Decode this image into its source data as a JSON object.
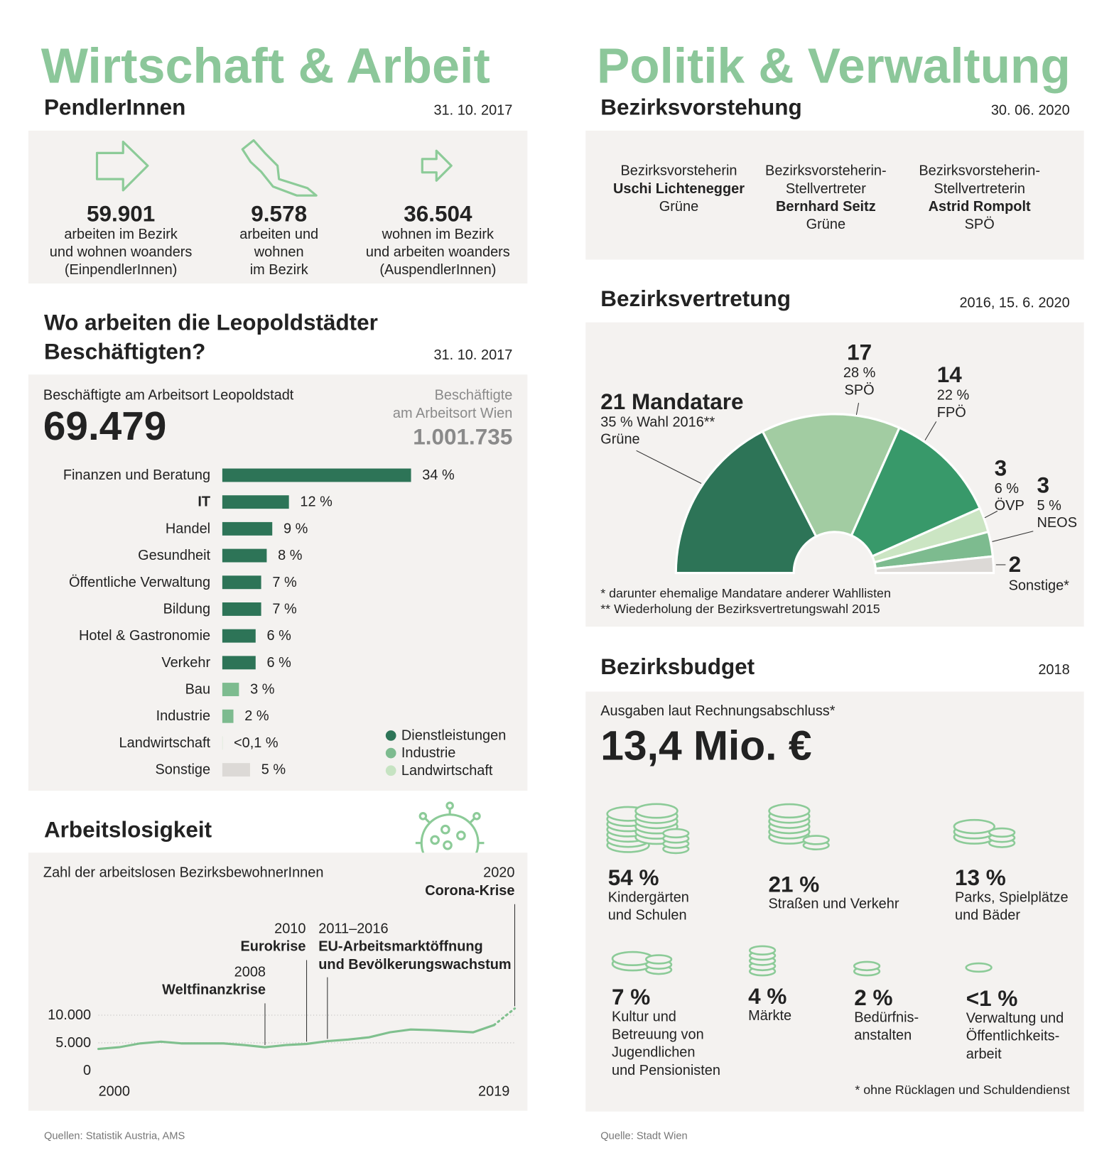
{
  "left_title": "Wirtschaft & Arbeit",
  "right_title": "Politik & Verwaltung",
  "pendler": {
    "heading": "PendlerInnen",
    "date": "31. 10. 2017",
    "items": [
      {
        "value": "59.901",
        "lines": [
          "arbeiten im Bezirk",
          "und wohnen woanders",
          "(EinpendlerInnen)"
        ]
      },
      {
        "value": "9.578",
        "lines": [
          "arbeiten und",
          "wohnen",
          "im Bezirk"
        ]
      },
      {
        "value": "36.504",
        "lines": [
          "wohnen im Bezirk",
          "und arbeiten woanders",
          "(AuspendlerInnen)"
        ]
      }
    ]
  },
  "sectors": {
    "heading": [
      "Wo arbeiten die Leopoldstädter",
      "Beschäftigten?"
    ],
    "date": "31. 10. 2017",
    "local_label": "Beschäftigte am Arbeitsort Leopoldstadt",
    "local_value": "69.479",
    "wien_label": [
      "Beschäftigte",
      "am Arbeitsort Wien"
    ],
    "wien_value": "1.001.735"
  },
  "vorstehung": {
    "heading": "Bezirksvorstehung",
    "date": "30. 06. 2020",
    "people": [
      {
        "role": [
          "Bezirksvorsteherin"
        ],
        "name": "Uschi Lichtenegger",
        "party": "Grüne"
      },
      {
        "role": [
          "Bezirksvorsteherin-",
          "Stellvertreter"
        ],
        "name": "Bernhard Seitz",
        "party": "Grüne"
      },
      {
        "role": [
          "Bezirksvorsteherin-",
          "Stellvertreterin"
        ],
        "name": "Astrid Rompolt",
        "party": "SPÖ"
      }
    ]
  },
  "budget": {
    "heading": "Bezirksbudget",
    "date": "2018",
    "label": "Ausgaben laut Rechnungsabschluss*",
    "total": "13,4 Mio. €",
    "items": [
      {
        "share": "54 %",
        "lines": [
          "Kindergärten",
          "und Schulen"
        ]
      },
      {
        "share": "21 %",
        "lines": [
          "Straßen und Verkehr"
        ]
      },
      {
        "share": "13 %",
        "lines": [
          "Parks, Spielplätze",
          "und Bäder"
        ]
      },
      {
        "share": "7 %",
        "lines": [
          "Kultur und",
          "Betreuung  von",
          "Jugendlichen",
          "und Pensionisten"
        ]
      },
      {
        "share": "4 %",
        "lines": [
          "Märkte"
        ]
      },
      {
        "share": "2 %",
        "lines": [
          "Bedürfnis-",
          "anstalten"
        ]
      },
      {
        "share": "<1 %",
        "lines": [
          "Verwaltung und",
          "Öffentlichkeits-",
          "arbeit"
        ]
      }
    ],
    "footnote": "* ohne Rücklagen und Schuldendienst"
  },
  "sources": [
    "Quellen: Statistik Austria, AMS",
    "Quelle: Stadt Wien"
  ],
  "chart_data": [
    {
      "type": "bar",
      "orientation": "horizontal",
      "categories": [
        "Finanzen und Beratung",
        "IT",
        "Handel",
        "Gesundheit",
        "Öffentliche Verwaltung",
        "Bildung",
        "Hotel & Gastronomie",
        "Verkehr",
        "Bau",
        "Industrie",
        "Landwirtschaft",
        "Sonstige"
      ],
      "values": [
        34,
        12,
        9,
        8,
        7,
        7,
        6,
        6,
        3,
        2,
        0.05,
        5
      ],
      "value_labels": [
        "34 %",
        "12 %",
        "9 %",
        "8 %",
        "7 %",
        "7 %",
        "6 %",
        "6 %",
        "3 %",
        "2 %",
        "<0,1 %",
        "5 %"
      ],
      "colors": [
        "#2d7457",
        "#2d7457",
        "#2d7457",
        "#2d7457",
        "#2d7457",
        "#2d7457",
        "#2d7457",
        "#2d7457",
        "#7dbb8f",
        "#7dbb8f",
        "#c6e3c2",
        "#dcd9d6"
      ],
      "legend": [
        {
          "name": "Dienstleistungen",
          "color": "#2d7457"
        },
        {
          "name": "Industrie",
          "color": "#7dbb8f"
        },
        {
          "name": "Landwirtschaft",
          "color": "#c6e3c2"
        }
      ]
    },
    {
      "type": "line",
      "title": "Arbeitslosigkeit",
      "subtitle": "Zahl der arbeitslosen BezirksbewohnerInnen",
      "x": [
        2000,
        2001,
        2002,
        2003,
        2004,
        2005,
        2006,
        2007,
        2008,
        2009,
        2010,
        2011,
        2012,
        2013,
        2014,
        2015,
        2016,
        2017,
        2018,
        2019,
        2020
      ],
      "series": [
        {
          "color": "#7fc08e",
          "values": [
            3900,
            4200,
            4900,
            5200,
            4900,
            4900,
            4900,
            4600,
            4200,
            4600,
            4800,
            5300,
            5600,
            6000,
            6900,
            7400,
            7300,
            7100,
            6900,
            8200,
            null
          ]
        },
        {
          "color": "#7fc08e",
          "dashed": true,
          "values": [
            null,
            null,
            null,
            null,
            null,
            null,
            null,
            null,
            null,
            null,
            null,
            null,
            null,
            null,
            null,
            null,
            null,
            null,
            null,
            8200,
            11200
          ]
        }
      ],
      "xlim": [
        2000,
        2020
      ],
      "xticks": [
        2000,
        2019
      ],
      "ylim": [
        0,
        12000
      ],
      "yticks": [
        0,
        {
          "value": 5000,
          "label": "5.000"
        },
        {
          "value": 10000,
          "label": "10.000"
        }
      ],
      "grid": true,
      "annotations": [
        {
          "x": 2008,
          "year": "2008",
          "lines": [
            "Weltfinanzkrise"
          ]
        },
        {
          "x": 2010,
          "year": "2010",
          "lines": [
            "Eurokrise"
          ]
        },
        {
          "x": 2011,
          "year": "2011–2016",
          "lines": [
            "EU-Arbeitsmarktöffnung",
            "und Bevölkerungswachstum"
          ]
        },
        {
          "x": 2020,
          "year": "2020",
          "lines": [
            "Corona-Krise"
          ]
        }
      ]
    },
    {
      "type": "pie",
      "half": true,
      "title": "Bezirksvertretung",
      "date": "2016, 15. 6. 2020",
      "categories": [
        "Grüne",
        "SPÖ",
        "FPÖ",
        "ÖVP",
        "NEOS",
        "Sonstige*"
      ],
      "values": [
        21,
        17,
        14,
        3,
        3,
        2
      ],
      "value_labels": [
        "21 Mandatare",
        "17",
        "14",
        "3",
        "3",
        "2"
      ],
      "share_labels": [
        "35 % Wahl 2016**",
        "28 %",
        "22 %",
        "6 %",
        "5 %",
        null
      ],
      "colors": [
        "#2d7457",
        "#a2cca2",
        "#38996a",
        "#cbe5c3",
        "#7dbb8f",
        "#dcd9d6"
      ],
      "footnotes": [
        "* darunter ehemalige Mandatare anderer Wahllisten",
        "** Wiederholung der Bezirksvertretungswahl 2015"
      ]
    }
  ]
}
